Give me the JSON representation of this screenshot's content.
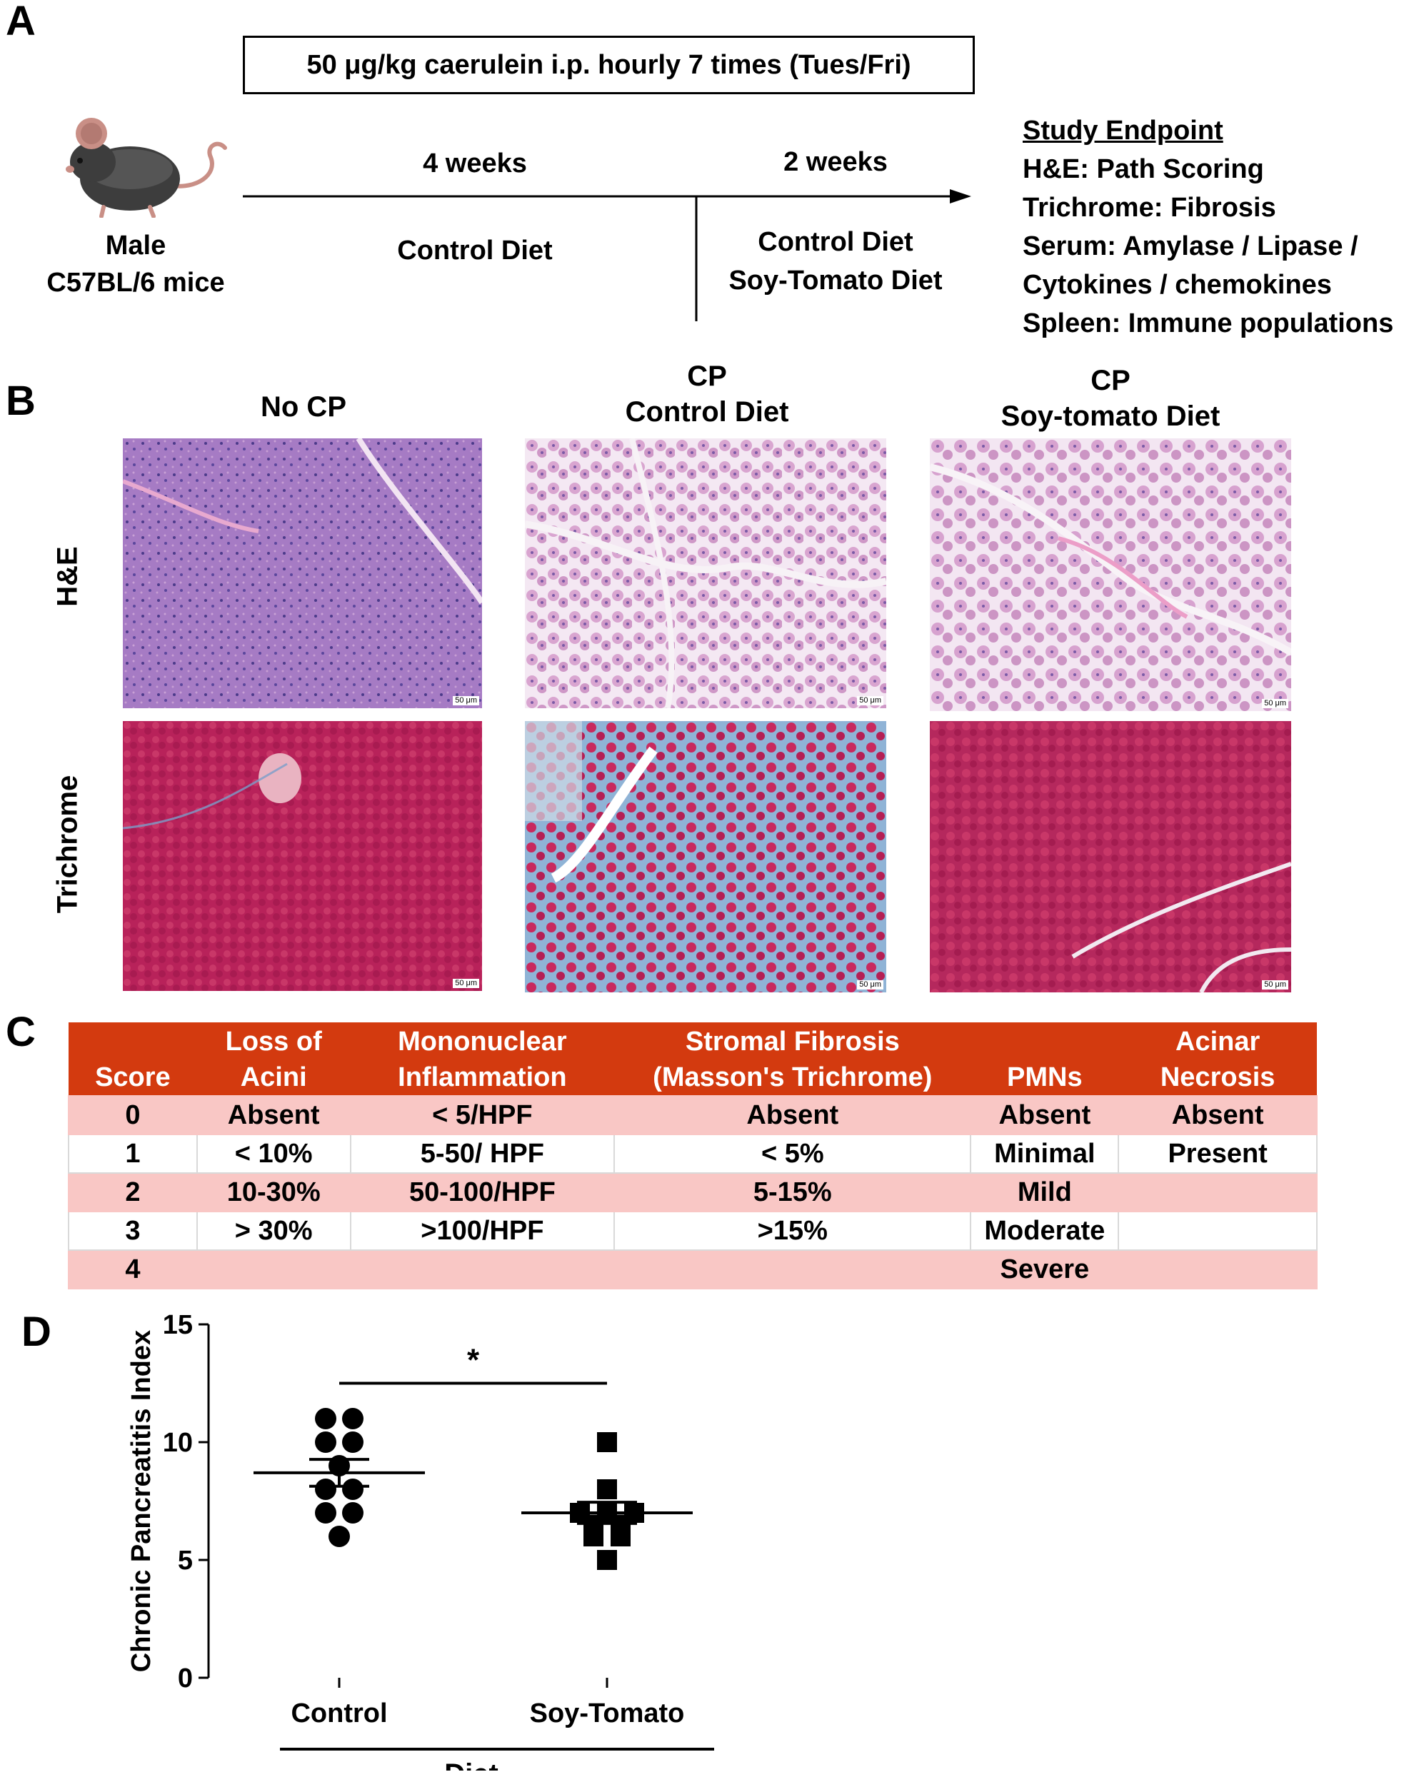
{
  "panel_labels": {
    "a": "A",
    "b": "B",
    "c": "C",
    "d": "D"
  },
  "panel_a": {
    "protocol": "50 μg/kg caerulein i.p. hourly 7 times (Tues/Fri)",
    "subject_line1": "Male",
    "subject_line2": "C57BL/6 mice",
    "period1": "4 weeks",
    "period2": "2 weeks",
    "diet1": "Control Diet",
    "diet2a": "Control Diet",
    "diet2b": "Soy-Tomato Diet",
    "endpoint_title": "Study Endpoint",
    "endpoints": [
      "H&E: Path Scoring",
      "Trichrome:  Fibrosis",
      "Serum:  Amylase / Lipase /",
      "Cytokines / chemokines",
      "Spleen: Immune populations"
    ]
  },
  "panel_b": {
    "col1": "No CP",
    "col2_line1": "CP",
    "col2_line2": "Control Diet",
    "col3_line1": "CP",
    "col3_line2": "Soy-tomato Diet",
    "row1": "H&E",
    "row2": "Trichrome",
    "scale_bars": [
      "50 μm",
      "50 μm",
      "50 μm",
      "50 μm",
      "50 μm",
      "50 μm"
    ]
  },
  "panel_c": {
    "headers": [
      {
        "line1": "",
        "line2": "Score"
      },
      {
        "line1": "Loss of",
        "line2": "Acini"
      },
      {
        "line1": "Mononuclear",
        "line2": "Inflammation"
      },
      {
        "line1": "Stromal Fibrosis",
        "line2": "(Masson's Trichrome)"
      },
      {
        "line1": "",
        "line2": "PMNs"
      },
      {
        "line1": "Acinar",
        "line2": "Necrosis"
      }
    ],
    "rows": [
      [
        "0",
        "Absent",
        "< 5/HPF",
        "Absent",
        "Absent",
        "Absent"
      ],
      [
        "1",
        "< 10%",
        "5-50/ HPF",
        "< 5%",
        "Minimal",
        "Present"
      ],
      [
        "2",
        "10-30%",
        "50-100/HPF",
        "5-15%",
        "Mild",
        ""
      ],
      [
        "3",
        "> 30%",
        ">100/HPF",
        ">15%",
        "Moderate",
        ""
      ],
      [
        "4",
        "",
        "",
        "",
        "Severe",
        ""
      ]
    ],
    "colors": {
      "header": "#d33a0f",
      "pink_row": "#f9c7c5"
    }
  },
  "chart_data": {
    "type": "scatter",
    "ylabel": "Chronic Pancreatitis Index",
    "xlabel": "Diet",
    "categories": [
      "Control",
      "Soy-Tomato"
    ],
    "ylim": [
      0,
      15
    ],
    "yticks": [
      "0",
      "5",
      "10",
      "15"
    ],
    "significance": "*",
    "series": [
      {
        "name": "Control",
        "marker": "circle",
        "values": [
          11,
          11,
          10,
          10,
          9,
          8,
          8,
          7,
          7,
          6
        ],
        "mean": 8.7,
        "sem": 0.57
      },
      {
        "name": "Soy-Tomato",
        "marker": "square",
        "values": [
          10,
          8,
          7,
          7,
          7,
          6.5,
          6.5,
          6,
          6,
          5
        ],
        "mean": 7.0,
        "sem": 0.45
      }
    ]
  }
}
